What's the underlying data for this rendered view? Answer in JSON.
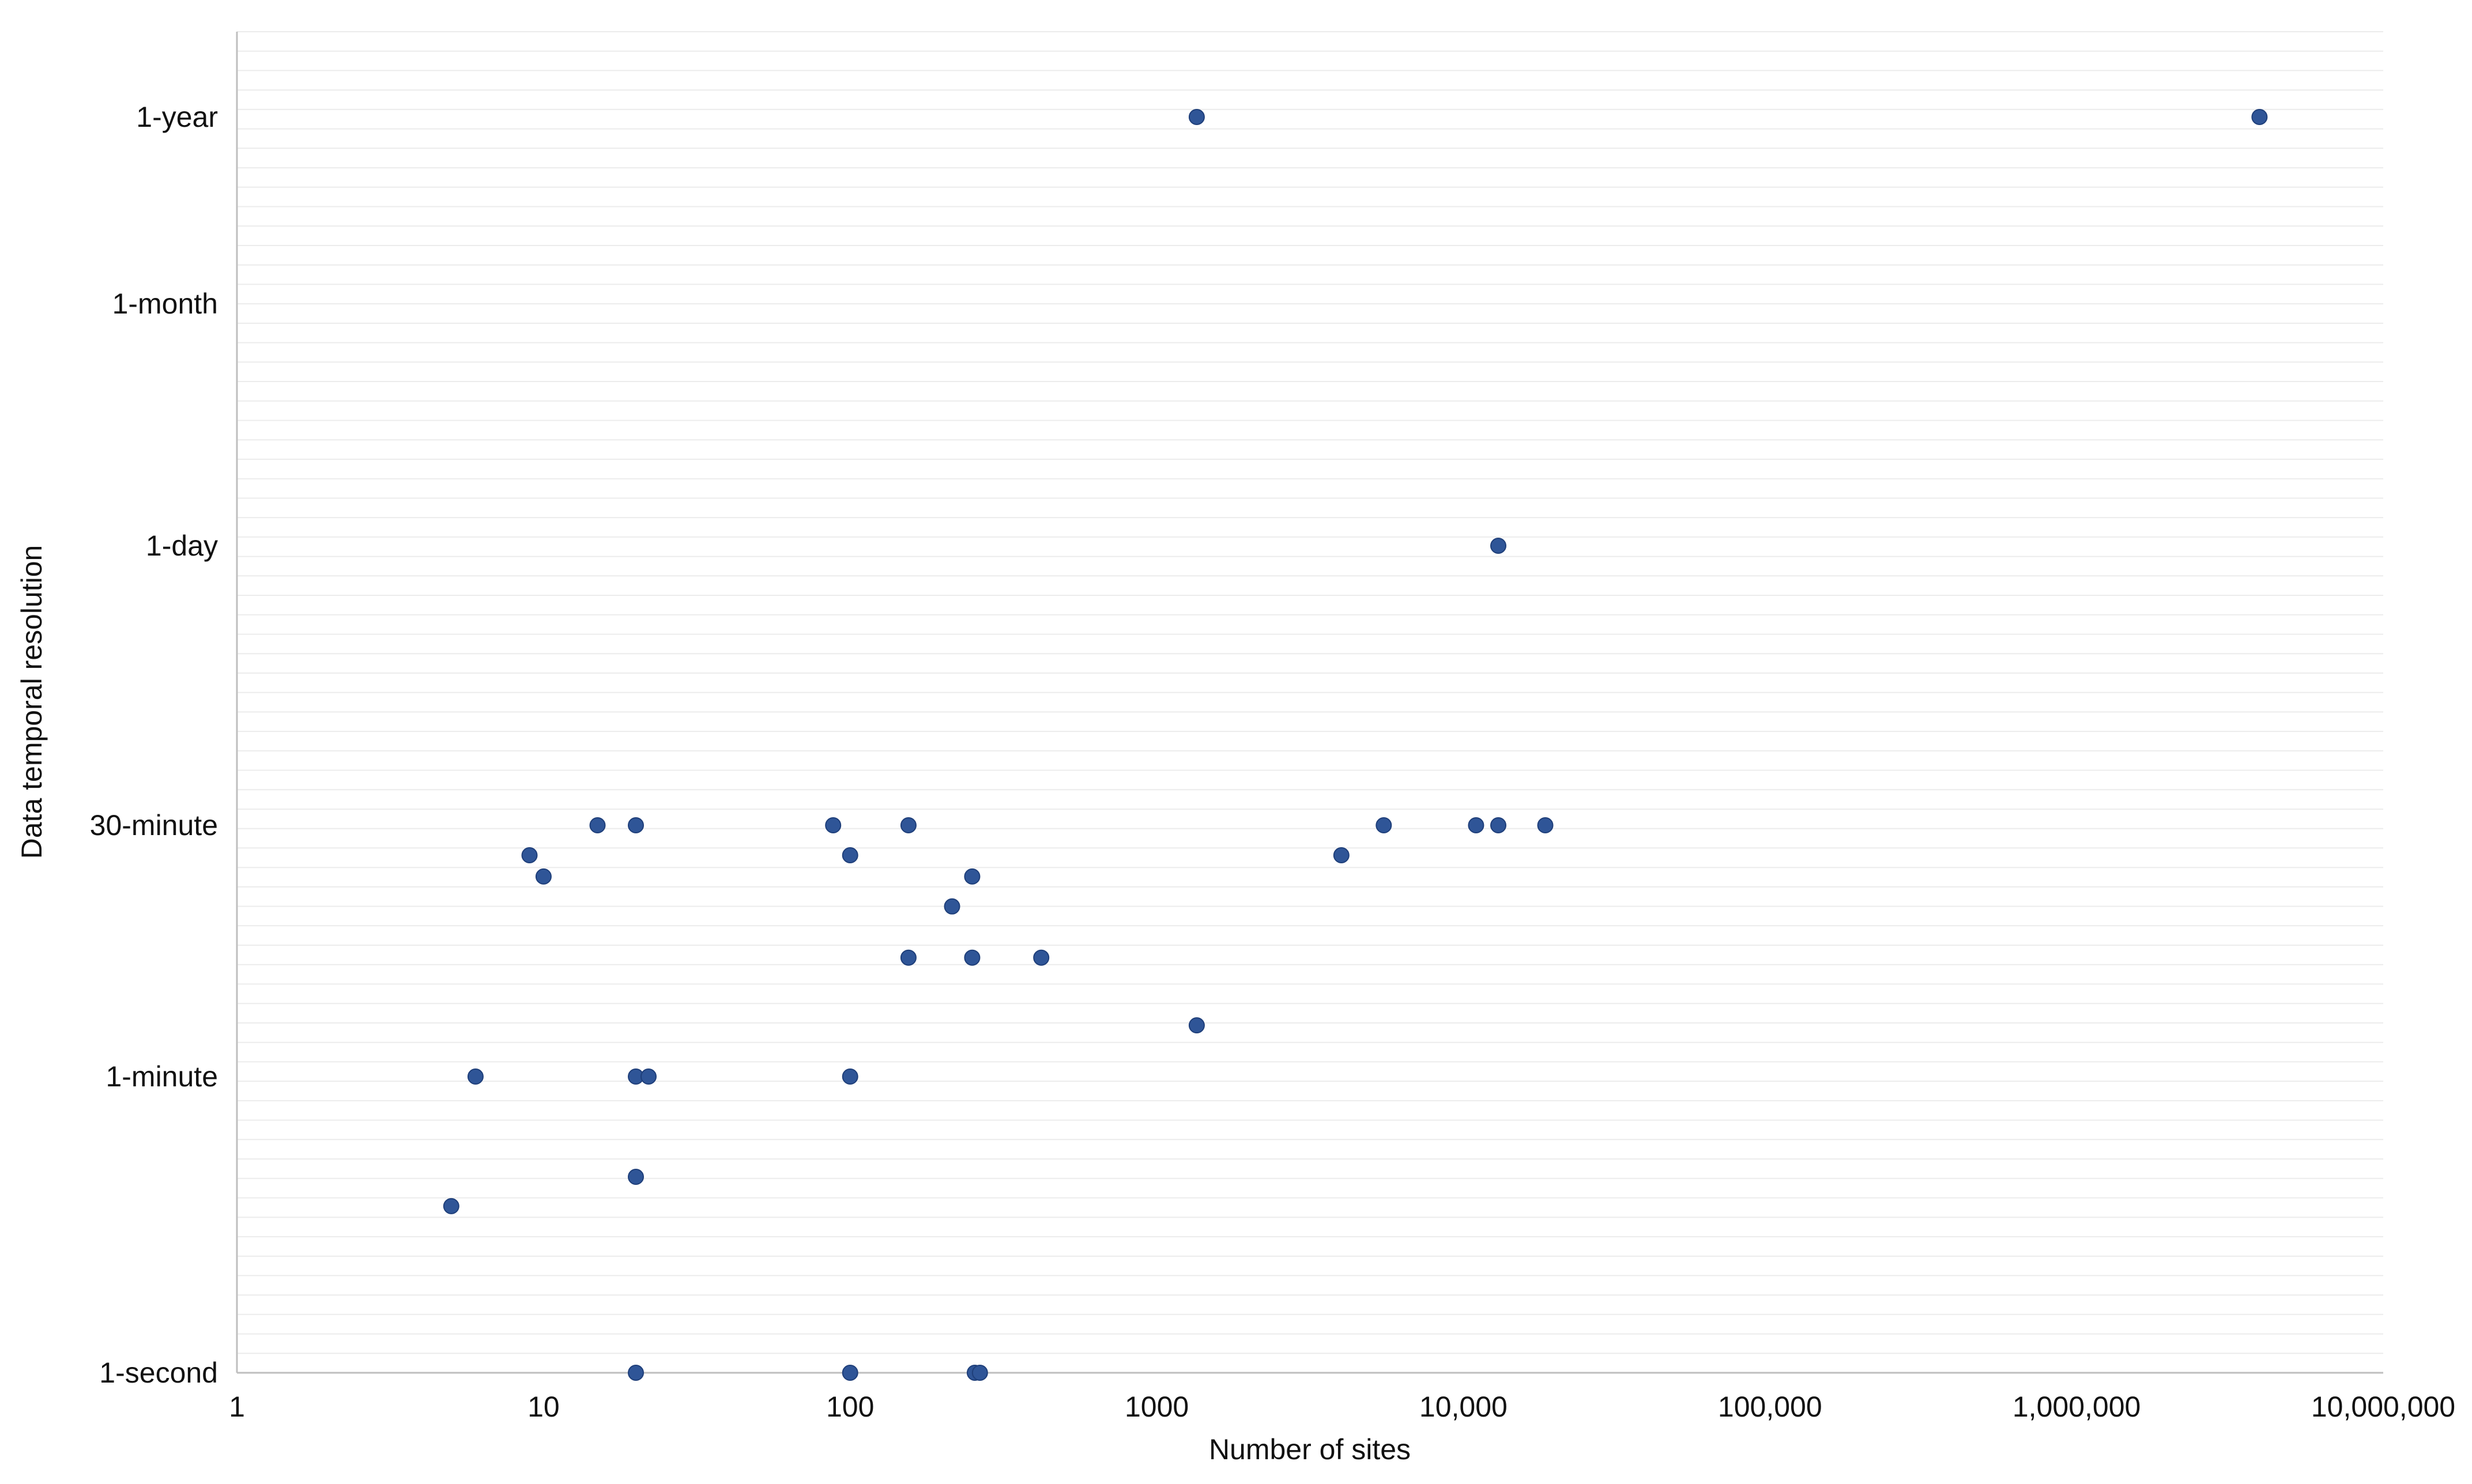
{
  "chart_data": {
    "type": "scatter",
    "title": "",
    "xlabel": "Number of sites",
    "ylabel": "Data temporal resolution",
    "x_scale": "log",
    "xlim": [
      1,
      10000000
    ],
    "x_ticks": [
      {
        "value": 1,
        "label": "1"
      },
      {
        "value": 10,
        "label": "10"
      },
      {
        "value": 100,
        "label": "100"
      },
      {
        "value": 1000,
        "label": "1000"
      },
      {
        "value": 10000,
        "label": "10,000"
      },
      {
        "value": 100000,
        "label": "100,000"
      },
      {
        "value": 1000000,
        "label": "1,000,000"
      },
      {
        "value": 10000000,
        "label": "10,000,000"
      }
    ],
    "y_scale": "log-seconds",
    "y_ticks": [
      {
        "seconds": 1,
        "label": "1-second"
      },
      {
        "seconds": 60,
        "label": "1-minute"
      },
      {
        "seconds": 1800,
        "label": "30-minute"
      },
      {
        "seconds": 86400,
        "label": "1-day"
      },
      {
        "seconds": 2592000,
        "label": "1-month"
      },
      {
        "seconds": 31536000,
        "label": "1-year"
      }
    ],
    "ylim_seconds": [
      1,
      31536000
    ],
    "grid": true,
    "legend": "none",
    "marker_color": "#2f5597",
    "points": [
      {
        "x": 1350,
        "y_seconds": 31536000
      },
      {
        "x": 3950000,
        "y_seconds": 31536000
      },
      {
        "x": 13000,
        "y_seconds": 86400
      },
      {
        "x": 15,
        "y_seconds": 1800
      },
      {
        "x": 20,
        "y_seconds": 1800
      },
      {
        "x": 88,
        "y_seconds": 1800
      },
      {
        "x": 155,
        "y_seconds": 1800
      },
      {
        "x": 5500,
        "y_seconds": 1800
      },
      {
        "x": 11000,
        "y_seconds": 1800
      },
      {
        "x": 13000,
        "y_seconds": 1800
      },
      {
        "x": 18500,
        "y_seconds": 1800
      },
      {
        "x": 9,
        "y_seconds": 1200
      },
      {
        "x": 100,
        "y_seconds": 1200
      },
      {
        "x": 4000,
        "y_seconds": 1200
      },
      {
        "x": 10,
        "y_seconds": 900
      },
      {
        "x": 250,
        "y_seconds": 900
      },
      {
        "x": 215,
        "y_seconds": 600
      },
      {
        "x": 155,
        "y_seconds": 300
      },
      {
        "x": 250,
        "y_seconds": 300
      },
      {
        "x": 420,
        "y_seconds": 300
      },
      {
        "x": 1350,
        "y_seconds": 120
      },
      {
        "x": 6,
        "y_seconds": 60
      },
      {
        "x": 20,
        "y_seconds": 60
      },
      {
        "x": 22,
        "y_seconds": 60
      },
      {
        "x": 100,
        "y_seconds": 60
      },
      {
        "x": 20,
        "y_seconds": 15
      },
      {
        "x": 5,
        "y_seconds": 10
      },
      {
        "x": 20,
        "y_seconds": 1
      },
      {
        "x": 100,
        "y_seconds": 1
      },
      {
        "x": 255,
        "y_seconds": 1
      },
      {
        "x": 265,
        "y_seconds": 1
      }
    ]
  }
}
